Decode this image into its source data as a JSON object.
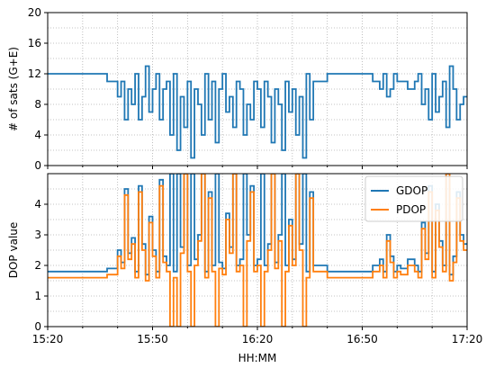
{
  "chart_data": [
    {
      "type": "line",
      "panel": "top",
      "ylabel": "# of sats (G+E)",
      "xlim": [
        "15:20",
        "17:20"
      ],
      "ylim": [
        0,
        20
      ],
      "yticks": [
        0,
        4,
        8,
        12,
        16,
        20
      ],
      "grid": true,
      "legend": "none",
      "series": [
        {
          "color": "#1f77b4",
          "x": [
            "15:20",
            "15:35",
            "15:37",
            "15:40",
            "15:41",
            "15:42",
            "15:43",
            "15:44",
            "15:45",
            "15:46",
            "15:47",
            "15:48",
            "15:49",
            "15:50",
            "15:51",
            "15:52",
            "15:53",
            "15:54",
            "15:55",
            "15:56",
            "15:57",
            "15:58",
            "15:59",
            "16:00",
            "16:01",
            "16:02",
            "16:03",
            "16:04",
            "16:05",
            "16:06",
            "16:07",
            "16:08",
            "16:09",
            "16:10",
            "16:11",
            "16:12",
            "16:13",
            "16:14",
            "16:15",
            "16:16",
            "16:17",
            "16:18",
            "16:19",
            "16:20",
            "16:21",
            "16:22",
            "16:23",
            "16:24",
            "16:25",
            "16:26",
            "16:27",
            "16:28",
            "16:29",
            "16:30",
            "16:31",
            "16:32",
            "16:33",
            "16:34",
            "16:35",
            "16:36",
            "16:40",
            "16:45",
            "16:50",
            "16:53",
            "16:54",
            "16:55",
            "16:56",
            "16:57",
            "16:58",
            "16:59",
            "17:00",
            "17:01",
            "17:03",
            "17:05",
            "17:06",
            "17:07",
            "17:08",
            "17:09",
            "17:10",
            "17:11",
            "17:12",
            "17:13",
            "17:14",
            "17:15",
            "17:16",
            "17:17",
            "17:18",
            "17:19"
          ],
          "y": [
            12,
            12,
            11,
            9,
            11,
            6,
            10,
            8,
            12,
            6,
            9,
            13,
            7,
            10,
            12,
            6,
            10,
            11,
            4,
            12,
            2,
            9,
            5,
            11,
            1,
            10,
            8,
            4,
            12,
            6,
            11,
            3,
            10,
            12,
            7,
            9,
            5,
            11,
            10,
            4,
            8,
            6,
            11,
            10,
            5,
            11,
            9,
            3,
            10,
            8,
            2,
            11,
            7,
            10,
            4,
            9,
            1,
            12,
            6,
            11,
            12,
            12,
            12,
            11,
            11,
            10,
            12,
            9,
            10,
            12,
            11,
            11,
            10,
            11,
            12,
            8,
            10,
            6,
            12,
            7,
            9,
            11,
            5,
            13,
            10,
            6,
            8,
            9
          ]
        }
      ]
    },
    {
      "type": "line",
      "panel": "bottom",
      "ylabel": "DOP value",
      "xlabel": "HH:MM",
      "xlim": [
        "15:20",
        "17:20"
      ],
      "ylim": [
        0,
        5
      ],
      "yticks": [
        0,
        1,
        2,
        3,
        4
      ],
      "xticks": [
        "15:20",
        "15:50",
        "16:20",
        "16:50",
        "17:20"
      ],
      "grid": true,
      "legend": "top-right",
      "series": [
        {
          "name": "GDOP",
          "color": "#1f77b4",
          "x": [
            "15:20",
            "15:35",
            "15:37",
            "15:40",
            "15:41",
            "15:42",
            "15:43",
            "15:44",
            "15:45",
            "15:46",
            "15:47",
            "15:48",
            "15:49",
            "15:50",
            "15:51",
            "15:52",
            "15:53",
            "15:54",
            "15:55",
            "15:56",
            "15:57",
            "15:58",
            "15:59",
            "16:00",
            "16:01",
            "16:02",
            "16:03",
            "16:04",
            "16:05",
            "16:06",
            "16:07",
            "16:08",
            "16:09",
            "16:10",
            "16:11",
            "16:12",
            "16:13",
            "16:14",
            "16:15",
            "16:16",
            "16:17",
            "16:18",
            "16:19",
            "16:20",
            "16:21",
            "16:22",
            "16:23",
            "16:24",
            "16:25",
            "16:26",
            "16:27",
            "16:28",
            "16:29",
            "16:30",
            "16:31",
            "16:32",
            "16:33",
            "16:34",
            "16:35",
            "16:36",
            "16:40",
            "16:45",
            "16:50",
            "16:53",
            "16:54",
            "16:55",
            "16:56",
            "16:57",
            "16:58",
            "16:59",
            "17:00",
            "17:01",
            "17:03",
            "17:05",
            "17:06",
            "17:07",
            "17:08",
            "17:09",
            "17:10",
            "17:11",
            "17:12",
            "17:13",
            "17:14",
            "17:15",
            "17:16",
            "17:17",
            "17:18",
            "17:19"
          ],
          "y": [
            1.8,
            1.8,
            1.9,
            2.5,
            2.1,
            4.5,
            2.4,
            2.9,
            1.8,
            4.6,
            2.7,
            1.7,
            3.6,
            2.5,
            1.8,
            4.8,
            2.3,
            2.0,
            5.0,
            1.8,
            5.0,
            2.6,
            5.0,
            2.0,
            5.0,
            2.2,
            3.0,
            5.0,
            1.8,
            4.4,
            2.0,
            5.0,
            2.1,
            1.9,
            3.7,
            2.6,
            5.0,
            2.0,
            2.2,
            5.0,
            3.0,
            4.6,
            2.0,
            2.2,
            5.0,
            2.0,
            2.7,
            5.0,
            2.1,
            3.0,
            5.0,
            2.0,
            3.5,
            2.2,
            5.0,
            2.7,
            5.0,
            1.8,
            4.4,
            2.0,
            1.8,
            1.8,
            1.8,
            2.0,
            2.0,
            2.2,
            1.8,
            3.0,
            2.3,
            1.8,
            2.0,
            1.9,
            2.2,
            2.0,
            1.8,
            3.4,
            2.4,
            4.6,
            1.8,
            4.0,
            2.8,
            2.0,
            5.0,
            1.7,
            2.3,
            4.4,
            3.0,
            2.7
          ]
        },
        {
          "name": "PDOP",
          "color": "#ff7f0e",
          "x": [
            "15:20",
            "15:35",
            "15:37",
            "15:40",
            "15:41",
            "15:42",
            "15:43",
            "15:44",
            "15:45",
            "15:46",
            "15:47",
            "15:48",
            "15:49",
            "15:50",
            "15:51",
            "15:52",
            "15:53",
            "15:54",
            "15:55",
            "15:56",
            "15:57",
            "15:58",
            "15:59",
            "16:00",
            "16:01",
            "16:02",
            "16:03",
            "16:04",
            "16:05",
            "16:06",
            "16:07",
            "16:08",
            "16:09",
            "16:10",
            "16:11",
            "16:12",
            "16:13",
            "16:14",
            "16:15",
            "16:16",
            "16:17",
            "16:18",
            "16:19",
            "16:20",
            "16:21",
            "16:22",
            "16:23",
            "16:24",
            "16:25",
            "16:26",
            "16:27",
            "16:28",
            "16:29",
            "16:30",
            "16:31",
            "16:32",
            "16:33",
            "16:34",
            "16:35",
            "16:36",
            "16:40",
            "16:45",
            "16:50",
            "16:53",
            "16:54",
            "16:55",
            "16:56",
            "16:57",
            "16:58",
            "16:59",
            "17:00",
            "17:01",
            "17:03",
            "17:05",
            "17:06",
            "17:07",
            "17:08",
            "17:09",
            "17:10",
            "17:11",
            "17:12",
            "17:13",
            "17:14",
            "17:15",
            "17:16",
            "17:17",
            "17:18",
            "17:19"
          ],
          "y": [
            1.6,
            1.6,
            1.7,
            2.3,
            1.9,
            4.3,
            2.2,
            2.7,
            1.6,
            4.4,
            2.5,
            1.5,
            3.4,
            2.3,
            1.6,
            4.6,
            2.1,
            1.8,
            0.0,
            1.6,
            0.0,
            2.4,
            5.0,
            1.8,
            0.0,
            2.0,
            2.8,
            5.0,
            1.6,
            4.2,
            1.8,
            0.0,
            1.9,
            1.7,
            3.5,
            2.4,
            5.0,
            1.8,
            2.0,
            0.0,
            2.8,
            4.4,
            1.8,
            2.0,
            0.0,
            1.8,
            2.5,
            5.0,
            1.9,
            2.8,
            0.0,
            1.8,
            3.3,
            2.0,
            5.0,
            2.5,
            0.0,
            1.6,
            4.2,
            1.8,
            1.6,
            1.6,
            1.6,
            1.8,
            1.8,
            2.0,
            1.6,
            2.8,
            2.1,
            1.6,
            1.8,
            1.7,
            2.0,
            1.8,
            1.6,
            3.2,
            2.2,
            4.4,
            1.6,
            3.8,
            2.6,
            1.8,
            5.0,
            1.5,
            2.1,
            4.2,
            2.8,
            2.5
          ]
        }
      ]
    }
  ]
}
